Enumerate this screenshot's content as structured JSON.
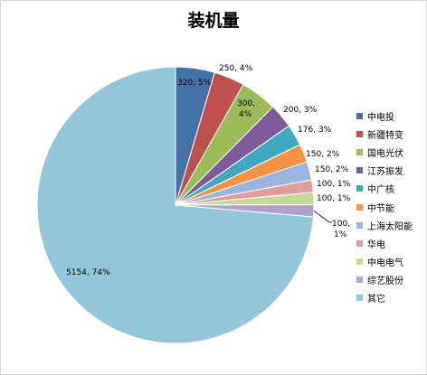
{
  "chart_data": {
    "type": "pie",
    "title": "装机量",
    "legend_position": "right",
    "start_angle": "top, clockwise",
    "slices": [
      {
        "name": "中电投",
        "value": 320,
        "label": "320, 5%",
        "color": "#4472a8"
      },
      {
        "name": "新疆特变",
        "value": 250,
        "label": "250, 4%",
        "color": "#c0504d"
      },
      {
        "name": "国电光伏",
        "value": 300,
        "label": "300, 4%",
        "color": "#9bbb59"
      },
      {
        "name": "江苏振发",
        "value": 200,
        "label": "200, 3%",
        "color": "#7e5a9b"
      },
      {
        "name": "中广核",
        "value": 176,
        "label": "176, 3%",
        "color": "#3fa9c0"
      },
      {
        "name": "中节能",
        "value": 150,
        "label": "150, 2%",
        "color": "#f59342"
      },
      {
        "name": "上海太阳能",
        "value": 150,
        "label": "150, 2%",
        "color": "#9ab4dc"
      },
      {
        "name": "华电",
        "value": 100,
        "label": "100, 1%",
        "color": "#e09c9a"
      },
      {
        "name": "中电电气",
        "value": 100,
        "label": "100, 1%",
        "color": "#c6d89a"
      },
      {
        "name": "综艺股份",
        "value": 100,
        "label": "100, 1%",
        "color": "#b3a2c8"
      },
      {
        "name": "其它",
        "value": 5154,
        "label": "5154, 74%",
        "color": "#93c6d8"
      }
    ]
  }
}
